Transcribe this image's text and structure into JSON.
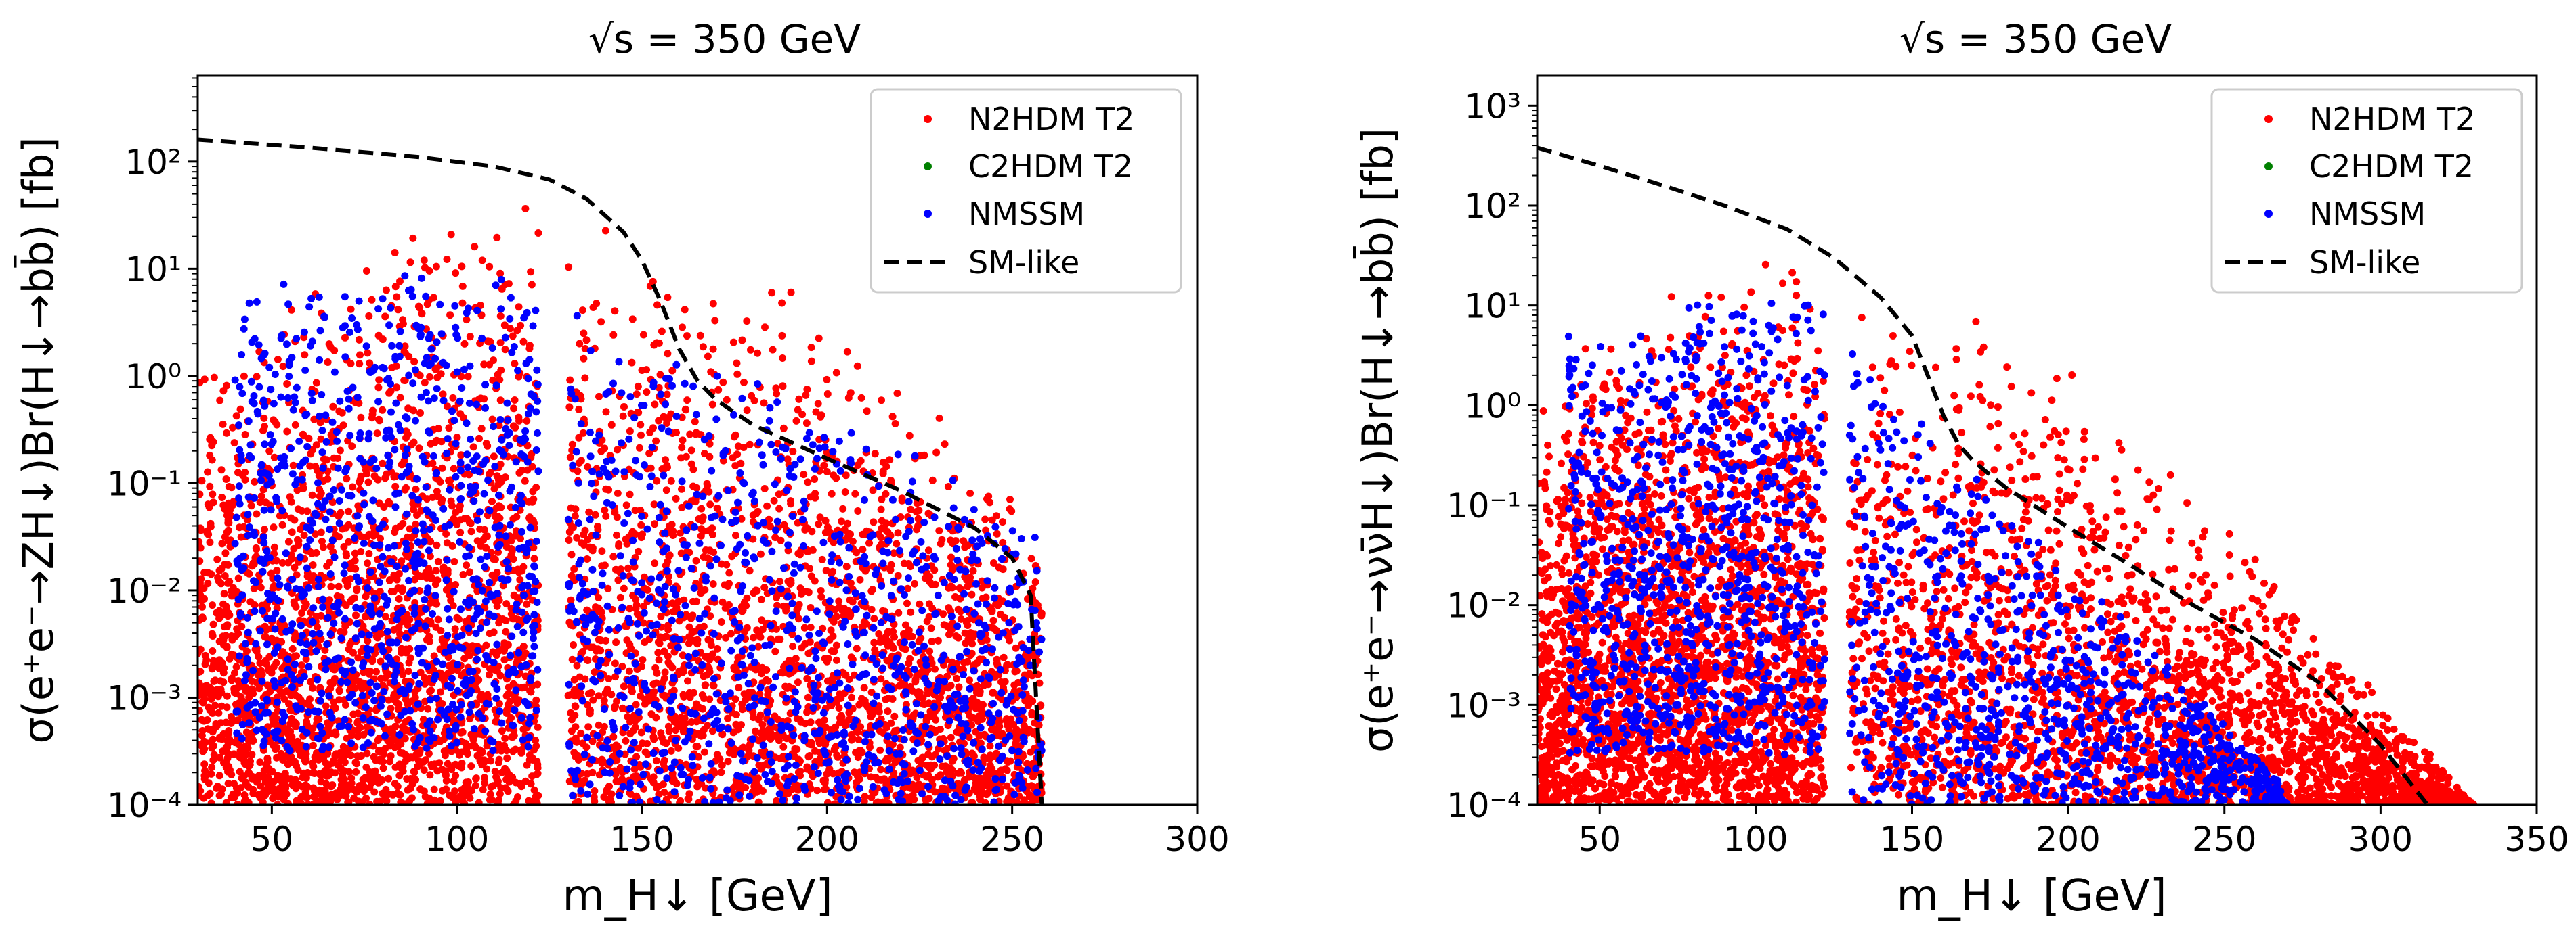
{
  "chart_data": [
    {
      "type": "scatter",
      "title": "√s = 350 GeV",
      "xlabel": "m_H↓ [GeV]",
      "ylabel": "σ(e⁺e⁻→ZH↓)Br(H↓→bb̄) [fb]",
      "xlim": [
        30,
        300
      ],
      "ylim_log10": [
        -4,
        2.8
      ],
      "y_scale": "log",
      "x_ticks": [
        50,
        100,
        150,
        200,
        250,
        300
      ],
      "y_ticks": [
        "10⁻⁴",
        "10⁻³",
        "10⁻²",
        "10⁻¹",
        "10⁰",
        "10¹",
        "10²"
      ],
      "grid": false,
      "legend": "top-right",
      "series": [
        {
          "name": "N2HDM T2",
          "color": "#ff0000",
          "regions": [
            {
              "x": [
                30,
                122
              ],
              "ymax_log10": [
                0.7,
                0.9,
                1.6,
                1.8
              ],
              "ymin_log10": -4
            },
            {
              "x": [
                130,
                258
              ],
              "ymax_log10": [
                1.6,
                1.3,
                0.2,
                -1.2
              ],
              "ymin_log10": -4
            }
          ]
        },
        {
          "name": "C2HDM T2",
          "color": "#008000",
          "regions": []
        },
        {
          "name": "NMSSM",
          "color": "#0000ff",
          "regions": [
            {
              "x": [
                40,
                122
              ],
              "ymax_log10": [
                0.9,
                1.2
              ],
              "ymin_log10": -3.5
            },
            {
              "x": [
                130,
                258
              ],
              "ymax_log10": [
                0.8,
                -1.3
              ],
              "ymin_log10": -4
            }
          ]
        },
        {
          "name": "SM-like",
          "color": "#000000",
          "style": "dashed",
          "x": [
            30,
            60,
            90,
            110,
            125,
            135,
            145,
            150,
            155,
            160,
            165,
            170,
            180,
            200,
            220,
            240,
            250,
            255,
            258
          ],
          "y": [
            160,
            135,
            110,
            90,
            68,
            45,
            22,
            12,
            5,
            1.8,
            0.9,
            0.6,
            0.35,
            0.17,
            0.085,
            0.038,
            0.02,
            0.009,
            0.0001
          ]
        }
      ]
    },
    {
      "type": "scatter",
      "title": "√s = 350 GeV",
      "xlabel": "m_H↓ [GeV]",
      "ylabel": "σ(e⁺e⁻→νν̄H↓)Br(H↓→bb̄) [fb]",
      "xlim": [
        30,
        350
      ],
      "ylim_log10": [
        -4,
        3.3
      ],
      "y_scale": "log",
      "x_ticks": [
        50,
        100,
        150,
        200,
        250,
        300,
        350
      ],
      "y_ticks": [
        "10⁻⁴",
        "10⁻³",
        "10⁻²",
        "10⁻¹",
        "10⁰",
        "10¹",
        "10²",
        "10³"
      ],
      "grid": false,
      "legend": "top-right",
      "series": [
        {
          "name": "N2HDM T2",
          "color": "#ff0000",
          "regions": [
            {
              "x": [
                30,
                122
              ],
              "ymax_log10": [
                0.6,
                0.9,
                1.6,
                1.6
              ],
              "ymin_log10": -4
            },
            {
              "x": [
                130,
                330
              ],
              "ymax_log10": [
                1.4,
                0.6,
                -1.5,
                -4
              ],
              "ymin_log10": -4
            }
          ]
        },
        {
          "name": "C2HDM T2",
          "color": "#008000",
          "regions": []
        },
        {
          "name": "NMSSM",
          "color": "#0000ff",
          "regions": [
            {
              "x": [
                40,
                122
              ],
              "ymax_log10": [
                0.8,
                1.3
              ],
              "ymin_log10": -3.5
            },
            {
              "x": [
                130,
                270
              ],
              "ymax_log10": [
                0.7,
                -3.8
              ],
              "ymin_log10": -4
            }
          ]
        },
        {
          "name": "SM-like",
          "color": "#000000",
          "style": "dashed",
          "x": [
            30,
            50,
            70,
            90,
            110,
            125,
            140,
            150,
            155,
            160,
            165,
            170,
            180,
            200,
            220,
            240,
            260,
            280,
            300,
            315
          ],
          "y": [
            380,
            250,
            160,
            100,
            58,
            30,
            12,
            5,
            2,
            0.8,
            0.4,
            0.27,
            0.15,
            0.06,
            0.025,
            0.01,
            0.0045,
            0.0017,
            0.0004,
            0.0001
          ]
        }
      ]
    }
  ]
}
